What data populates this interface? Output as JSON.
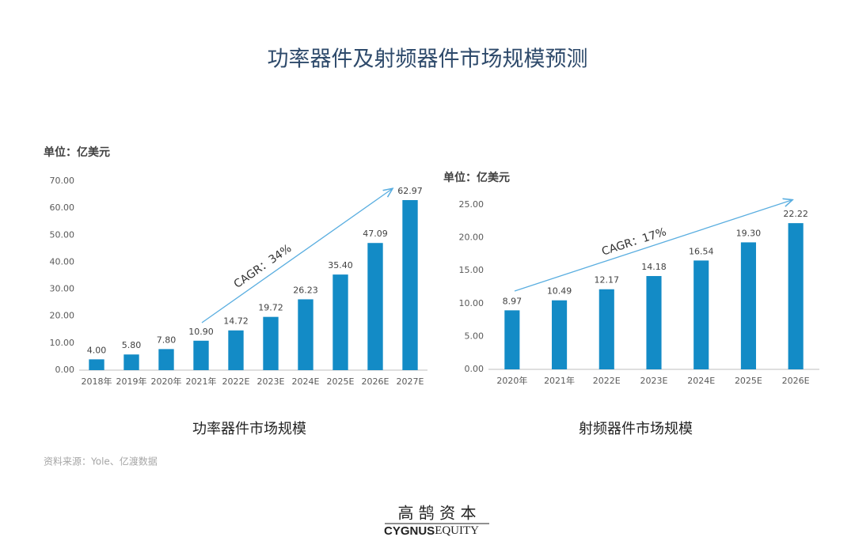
{
  "title": "功率器件及射频器件市场规模预测",
  "source": "资料来源：Yole、亿渡数据",
  "logo": {
    "chinese": "高 鹄 资 本",
    "english_bold": "CYGNUS",
    "english": "EQUITY"
  },
  "chart_data": [
    {
      "type": "bar",
      "unit_label": "单位：亿美元",
      "caption": "功率器件市场规模",
      "annotation": "CAGR：34%",
      "color": "#138bc6",
      "categories": [
        "2018年",
        "2019年",
        "2020年",
        "2021年",
        "2022E",
        "2023E",
        "2024E",
        "2025E",
        "2026E",
        "2027E"
      ],
      "values": [
        4,
        5.8,
        7.8,
        10.9,
        14.72,
        19.72,
        26.23,
        35.4,
        47.09,
        62.97
      ],
      "value_labels": [
        "4.00",
        "5.80",
        "7.80",
        "10.90",
        "14.72",
        "19.72",
        "26.23",
        "35.40",
        "47.09",
        "62.97"
      ],
      "ylim": [
        0,
        70
      ],
      "yticks": [
        {
          "value": 0,
          "label": "0.00"
        },
        {
          "value": 10,
          "label": "10.00"
        },
        {
          "value": 20,
          "label": "20.00"
        },
        {
          "value": 30,
          "label": "30.00"
        },
        {
          "value": 40,
          "label": "40.00"
        },
        {
          "value": 50,
          "label": "50.00"
        },
        {
          "value": 60,
          "label": "60.00"
        },
        {
          "value": 70,
          "label": "70.00"
        }
      ],
      "grid": false
    },
    {
      "type": "bar",
      "unit_label": "单位：亿美元",
      "caption": "射频器件市场规模",
      "annotation": "CAGR：17%",
      "color": "#138bc6",
      "categories": [
        "2020年",
        "2021年",
        "2022E",
        "2023E",
        "2024E",
        "2025E",
        "2026E"
      ],
      "values": [
        8.97,
        10.49,
        12.17,
        14.18,
        16.54,
        19.3,
        22.22
      ],
      "value_labels": [
        "8.97",
        "10.49",
        "12.17",
        "14.18",
        "16.54",
        "19.30",
        "22.22"
      ],
      "ylim": [
        0,
        25
      ],
      "yticks": [
        {
          "value": 0,
          "label": "0.00"
        },
        {
          "value": 5,
          "label": "5.00"
        },
        {
          "value": 10,
          "label": "10.00"
        },
        {
          "value": 15,
          "label": "15.00"
        },
        {
          "value": 20,
          "label": "20.00"
        },
        {
          "value": 25,
          "label": "25.00"
        }
      ],
      "grid": false
    }
  ]
}
